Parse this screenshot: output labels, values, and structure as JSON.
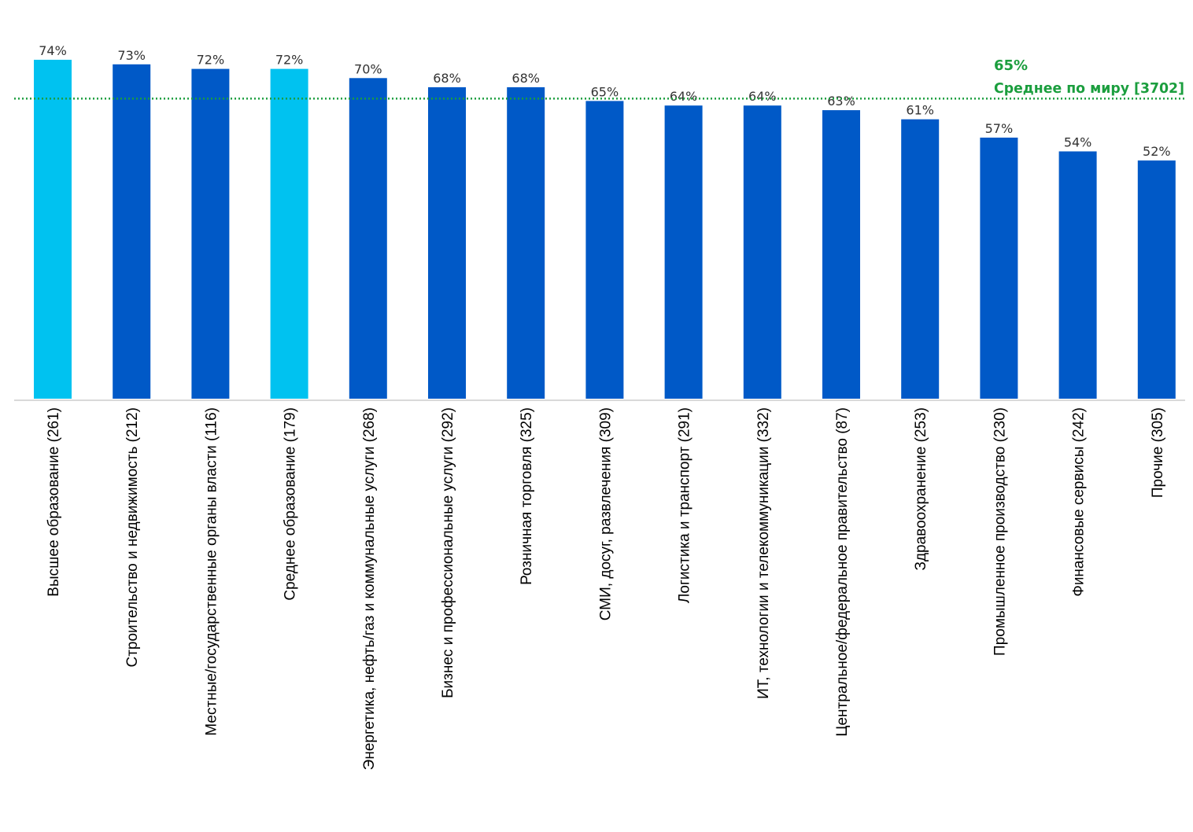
{
  "chart_data": {
    "type": "bar",
    "categories": [
      "Высшее образование (261)",
      "Строительство и недвижимость (212)",
      "Местные/государственные органы власти (116)",
      "Среднее образование (179)",
      "Энергетика, нефть/газ и коммунальные услуги (268)",
      "Бизнес и профессиональные услуги (292)",
      "Розничная торговля (325)",
      "СМИ, досуг, развлечения (309)",
      "Логистика и транспорт (291)",
      "ИТ, технологии и телекоммуникации (332)",
      "Центральное/федеральное правительство (87)",
      "Здравоохранение (253)",
      "Промышленное производство (230)",
      "Финансовые сервисы (242)",
      "Прочие (305)"
    ],
    "values": [
      74,
      73,
      72,
      72,
      70,
      68,
      68,
      65,
      64,
      64,
      63,
      61,
      57,
      54,
      52
    ],
    "value_labels": [
      "74%",
      "73%",
      "72%",
      "72%",
      "70%",
      "68%",
      "68%",
      "65%",
      "64%",
      "64%",
      "63%",
      "61%",
      "57%",
      "54%",
      "52%"
    ],
    "highlighted": [
      true,
      false,
      false,
      true,
      false,
      false,
      false,
      false,
      false,
      false,
      false,
      false,
      false,
      false,
      false
    ],
    "ylim": [
      0,
      74
    ],
    "title": "",
    "xlabel": "",
    "ylabel": "",
    "grid": false,
    "reference_line": {
      "value": 65,
      "value_label": "65%",
      "label": "Среднее по миру [3702]",
      "style": "dotted"
    },
    "colors": {
      "bar": "#0059c7",
      "bar_highlight": "#00c2f0",
      "reference": "#1b9e3e",
      "axis": "#d9d9d9"
    }
  }
}
